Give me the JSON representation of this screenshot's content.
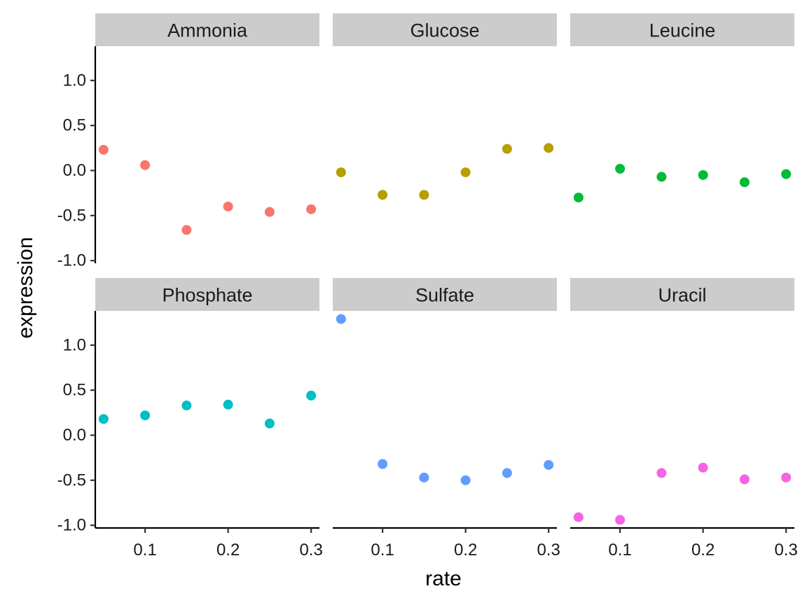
{
  "chart_data": {
    "type": "scatter",
    "layout": "facet_wrap",
    "xlabel": "rate",
    "ylabel": "expression",
    "xlim": [
      0.04,
      0.31
    ],
    "ylim": [
      -1.03,
      1.38
    ],
    "x_ticks": [
      0.1,
      0.2,
      0.3
    ],
    "x_tick_labels": [
      "0.1",
      "0.2",
      "0.3"
    ],
    "y_ticks": [
      -1.0,
      -0.5,
      0.0,
      0.5,
      1.0
    ],
    "y_tick_labels": [
      "-1.0",
      "-0.5",
      "0.0",
      "0.5",
      "1.0"
    ],
    "grid": false,
    "legend": "none",
    "x": [
      0.05,
      0.1,
      0.15,
      0.2,
      0.25,
      0.3
    ],
    "series": [
      {
        "name": "Ammonia",
        "color": "#F8766D",
        "values": [
          0.23,
          0.06,
          -0.66,
          -0.4,
          -0.46,
          -0.43
        ]
      },
      {
        "name": "Glucose",
        "color": "#B79F00",
        "values": [
          -0.02,
          -0.27,
          -0.27,
          -0.02,
          0.24,
          0.25
        ]
      },
      {
        "name": "Leucine",
        "color": "#00BA38",
        "values": [
          -0.3,
          0.02,
          -0.07,
          -0.05,
          -0.13,
          -0.04
        ]
      },
      {
        "name": "Phosphate",
        "color": "#00BFC4",
        "values": [
          0.18,
          0.22,
          0.33,
          0.34,
          0.13,
          0.44
        ]
      },
      {
        "name": "Sulfate",
        "color": "#619CFF",
        "values": [
          1.29,
          -0.32,
          -0.47,
          -0.5,
          -0.42,
          -0.33
        ]
      },
      {
        "name": "Uracil",
        "color": "#F564E3",
        "values": [
          -0.91,
          -0.94,
          -0.42,
          -0.36,
          -0.49,
          -0.47
        ]
      }
    ]
  }
}
